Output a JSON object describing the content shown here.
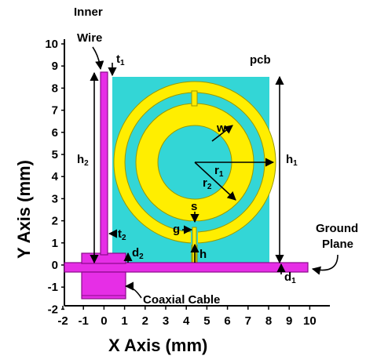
{
  "axes": {
    "x_title": "X Axis (mm)",
    "y_title": "Y Axis (mm)",
    "x_ticks": [
      "-2",
      "-1",
      "0",
      "1",
      "2",
      "3",
      "4",
      "5",
      "6",
      "7",
      "8",
      "9",
      "10"
    ],
    "y_ticks": [
      "10",
      "9",
      "8",
      "7",
      "6",
      "5",
      "4",
      "3",
      "2",
      "1",
      "0",
      "-1",
      "-2"
    ]
  },
  "labels": {
    "inner_wire_line1": "Inner",
    "inner_wire_line2": "Wire",
    "pcb": "pcb",
    "ground_line1": "Ground",
    "ground_line2": "Plane",
    "coaxial": "Coaxial Cable",
    "t1": "t",
    "t1_sub": "1",
    "t2": "t",
    "t2_sub": "2",
    "h1": "h",
    "h1_sub": "1",
    "h2": "h",
    "h2_sub": "2",
    "h": "h",
    "d1": "d",
    "d1_sub": "1",
    "d2": "d",
    "d2_sub": "2",
    "w": "w",
    "r1": "r",
    "r1_sub": "1",
    "r2": "r",
    "r2_sub": "2",
    "s": "s",
    "g": "g"
  },
  "colors": {
    "pcb": "#33d6d6",
    "ring": "#ffee00",
    "wire": "#e62ee6",
    "wire_edge": "#8a0a8a",
    "ring_edge": "#999900",
    "arrow": "#000000"
  }
}
